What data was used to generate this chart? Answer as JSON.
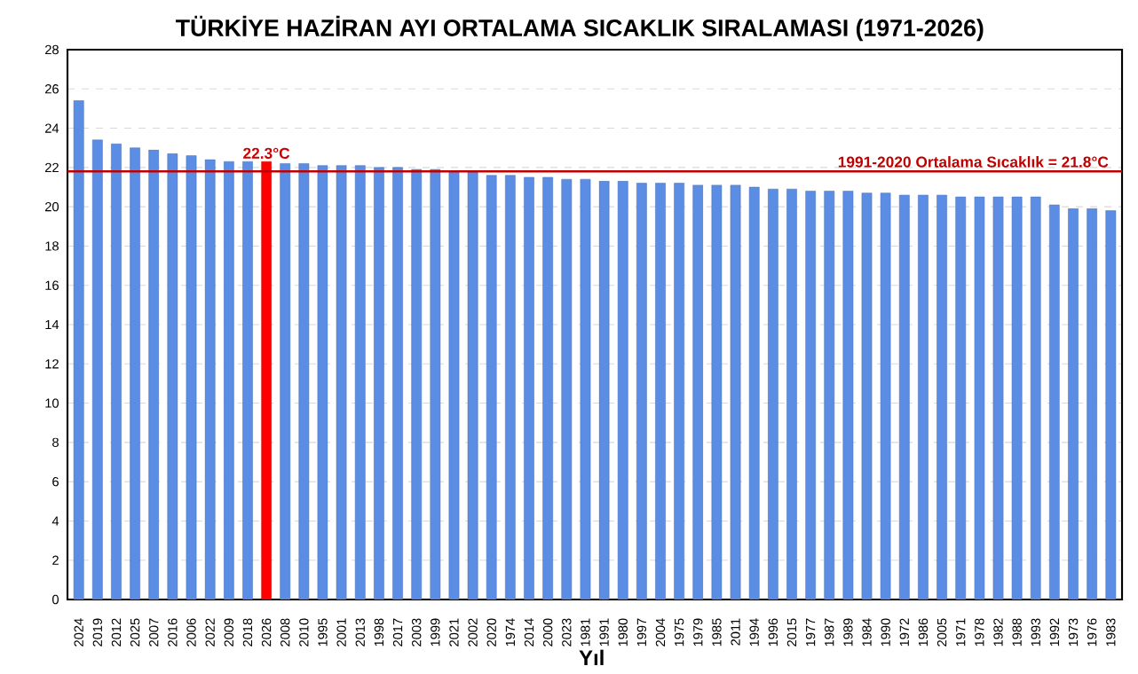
{
  "chart_data": {
    "type": "bar",
    "title": "TÜRKİYE HAZİRAN AYI ORTALAMA SICAKLIK SIRALAMASI (1971-2026)",
    "xlabel": "Yıl",
    "categories": [
      "2024",
      "2019",
      "2012",
      "2025",
      "2007",
      "2016",
      "2006",
      "2022",
      "2009",
      "2018",
      "2026",
      "2008",
      "2010",
      "1995",
      "2001",
      "2013",
      "1998",
      "2017",
      "2003",
      "1999",
      "2021",
      "2002",
      "2020",
      "1974",
      "2014",
      "2000",
      "2023",
      "1981",
      "1991",
      "1980",
      "1997",
      "2004",
      "1975",
      "1979",
      "1985",
      "2011",
      "1994",
      "1996",
      "2015",
      "1977",
      "1987",
      "1989",
      "1984",
      "1990",
      "1972",
      "1986",
      "2005",
      "1971",
      "1978",
      "1982",
      "1988",
      "1993",
      "1992",
      "1973",
      "1976",
      "1983"
    ],
    "values": [
      25.4,
      23.4,
      23.2,
      23.0,
      22.9,
      22.7,
      22.6,
      22.4,
      22.3,
      22.3,
      22.3,
      22.2,
      22.2,
      22.1,
      22.1,
      22.1,
      22.0,
      22.0,
      21.9,
      21.9,
      21.8,
      21.8,
      21.6,
      21.6,
      21.5,
      21.5,
      21.4,
      21.4,
      21.3,
      21.3,
      21.2,
      21.2,
      21.2,
      21.1,
      21.1,
      21.1,
      21.0,
      20.9,
      20.9,
      20.8,
      20.8,
      20.8,
      20.7,
      20.7,
      20.6,
      20.6,
      20.6,
      20.5,
      20.5,
      20.5,
      20.5,
      20.5,
      20.1,
      19.9,
      19.9,
      19.8
    ],
    "colors": [
      "#5b8de4",
      "#5b8de4",
      "#5b8de4",
      "#5b8de4",
      "#5b8de4",
      "#5b8de4",
      "#5b8de4",
      "#5b8de4",
      "#5b8de4",
      "#5b8de4",
      "#ff0000",
      "#5b8de4",
      "#5b8de4",
      "#5b8de4",
      "#5b8de4",
      "#5b8de4",
      "#5b8de4",
      "#5b8de4",
      "#5b8de4",
      "#5b8de4",
      "#5b8de4",
      "#5b8de4",
      "#5b8de4",
      "#5b8de4",
      "#5b8de4",
      "#5b8de4",
      "#5b8de4",
      "#5b8de4",
      "#5b8de4",
      "#5b8de4",
      "#5b8de4",
      "#5b8de4",
      "#5b8de4",
      "#5b8de4",
      "#5b8de4",
      "#5b8de4",
      "#5b8de4",
      "#5b8de4",
      "#5b8de4",
      "#5b8de4",
      "#5b8de4",
      "#5b8de4",
      "#5b8de4",
      "#5b8de4",
      "#5b8de4",
      "#5b8de4",
      "#5b8de4",
      "#5b8de4",
      "#5b8de4",
      "#5b8de4",
      "#5b8de4",
      "#5b8de4",
      "#5b8de4",
      "#5b8de4",
      "#5b8de4",
      "#5b8de4"
    ],
    "value_labels": [
      null,
      null,
      null,
      null,
      null,
      null,
      null,
      null,
      null,
      null,
      "22.3°C",
      null,
      null,
      null,
      null,
      null,
      null,
      null,
      null,
      null,
      null,
      null,
      null,
      null,
      null,
      null,
      null,
      null,
      null,
      null,
      null,
      null,
      null,
      null,
      null,
      null,
      null,
      null,
      null,
      null,
      null,
      null,
      null,
      null,
      null,
      null,
      null,
      null,
      null,
      null,
      null,
      null,
      null,
      null,
      null,
      null
    ],
    "ylim": [
      0,
      28
    ],
    "yticks": [
      0,
      2,
      4,
      6,
      8,
      10,
      12,
      14,
      16,
      18,
      20,
      22,
      24,
      26,
      28
    ],
    "grid": "y",
    "ref_lines": [
      {
        "axis": "y",
        "value": 21.8,
        "label": "1991-2020 Ortalama Sıcaklık = 21.8°C",
        "color": "#c00000"
      }
    ]
  }
}
